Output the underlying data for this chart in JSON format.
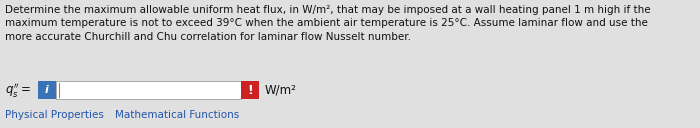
{
  "bg_color": "#e0e0e0",
  "text_lines": [
    "Determine the maximum allowable uniform heat flux, in W/m², that may be imposed at a wall heating panel 1 m high if the",
    "maximum temperature is not to exceed 39°C when the ambient air temperature is 25°C. Assume laminar flow and use the",
    "more accurate Churchill and Chu correlation for laminar flow Nusselt number."
  ],
  "label_text": "$q_s'' =$",
  "unit_text": "W/m²",
  "input_box_color": "#ffffff",
  "input_box_border": "#aaaaaa",
  "info_btn_color": "#3a72b8",
  "warn_btn_color": "#cc2222",
  "link1_text": "Physical Properties",
  "link2_text": "Mathematical Functions",
  "link_color": "#2255aa",
  "text_color": "#111111",
  "font_size_body": 7.5,
  "font_size_label": 8.5,
  "font_size_links": 7.5,
  "font_size_unit": 8.5
}
